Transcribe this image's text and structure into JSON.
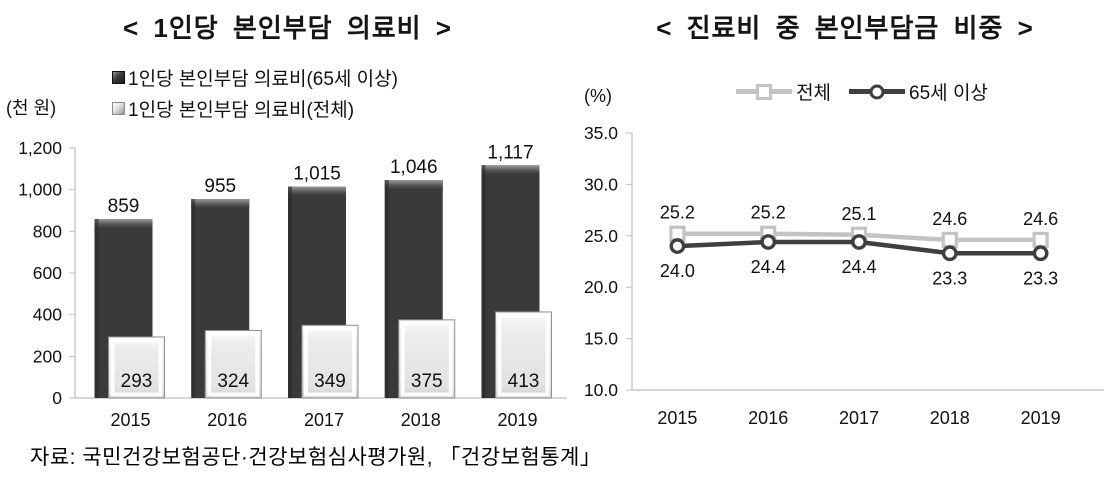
{
  "page": {
    "source": "자료: 국민건강보험공단·건강보험심사평가원, 「건강보험통계」"
  },
  "chart_data": [
    {
      "type": "bar",
      "title": "< 1인당 본인부담 의료비 >",
      "ylabel": "(천 원)",
      "xlabel": "",
      "value_format": "comma",
      "categories": [
        "2015",
        "2016",
        "2017",
        "2018",
        "2019"
      ],
      "series": [
        {
          "name": "1인당 본인부담 의료비(65세 이상)",
          "values": [
            859,
            955,
            1015,
            1046,
            1117
          ],
          "color": "#3a3a3a"
        },
        {
          "name": "1인당 본인부담 의료비(전체)",
          "values": [
            293,
            324,
            349,
            375,
            413
          ],
          "color": "#e6e6e6"
        }
      ],
      "ylim": [
        0,
        1200
      ],
      "ytick_step": 200,
      "grid": false,
      "legend_position": "top-left"
    },
    {
      "type": "line",
      "title": "< 진료비 중 본인부담금 비중 >",
      "ylabel": "(%)",
      "xlabel": "",
      "value_format": "fixed1",
      "categories": [
        "2015",
        "2016",
        "2017",
        "2018",
        "2019"
      ],
      "series": [
        {
          "name": "전체",
          "values": [
            25.2,
            25.2,
            25.1,
            24.6,
            24.6
          ],
          "color": "#c3c3c3",
          "marker": "square"
        },
        {
          "name": "65세 이상",
          "values": [
            24.0,
            24.4,
            24.4,
            23.3,
            23.3
          ],
          "color": "#3f3f3f",
          "marker": "circle"
        }
      ],
      "ylim": [
        10,
        35
      ],
      "ytick_step": 5,
      "grid": false,
      "legend_position": "top-center"
    }
  ]
}
